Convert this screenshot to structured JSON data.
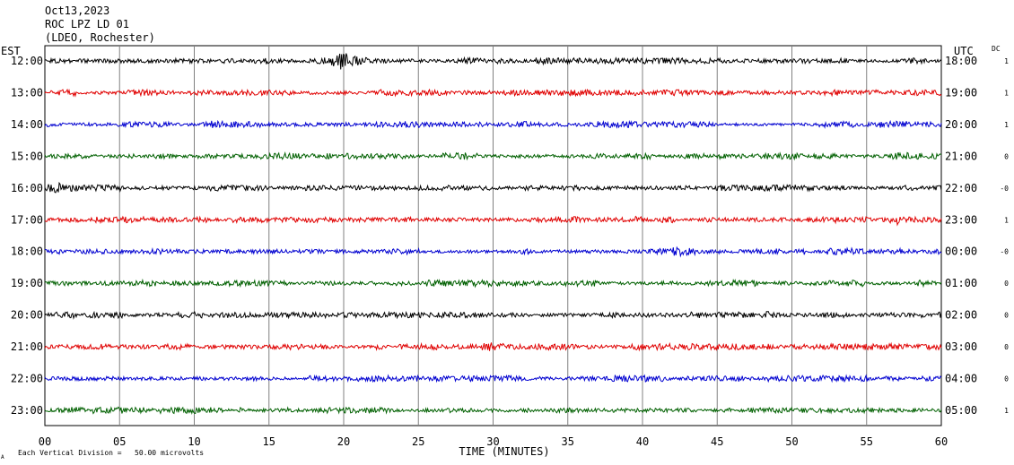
{
  "header": {
    "date": "Oct13,2023",
    "station": "ROC LPZ LD 01",
    "network": "(LDEO, Rochester)"
  },
  "left_axis_title": "EST",
  "right_axis_title": "UTC",
  "dc_title": "DC",
  "footer": {
    "scale_note": "Each Vertical Division =   50.00 microvolts",
    "corner_mark": "A"
  },
  "chart_data": {
    "type": "line",
    "xlabel": "TIME (MINUTES)",
    "xlim": [
      0,
      60
    ],
    "x_ticks": [
      "00",
      "05",
      "10",
      "15",
      "20",
      "25",
      "30",
      "35",
      "40",
      "45",
      "50",
      "55",
      "60"
    ],
    "trace_colors": [
      "#000000",
      "#e00000",
      "#0000d0",
      "#006000"
    ],
    "rows": [
      {
        "est": "12:00",
        "utc": "18:00",
        "dc": "1",
        "color": "#000000",
        "events": [
          [
            14.7,
            2.0
          ],
          [
            19.8,
            4.5
          ],
          [
            20.5,
            2.0
          ],
          [
            58.5,
            1.8
          ]
        ]
      },
      {
        "est": "13:00",
        "utc": "19:00",
        "dc": "1",
        "color": "#e00000",
        "events": [
          [
            53.0,
            1.6
          ],
          [
            56.5,
            1.5
          ]
        ]
      },
      {
        "est": "14:00",
        "utc": "20:00",
        "dc": "1",
        "color": "#0000d0",
        "events": [
          [
            11.0,
            1.6
          ],
          [
            31.8,
            1.6
          ]
        ]
      },
      {
        "est": "15:00",
        "utc": "21:00",
        "dc": "0",
        "color": "#006000",
        "events": [
          [
            28.0,
            1.6
          ],
          [
            57.5,
            1.9
          ]
        ]
      },
      {
        "est": "16:00",
        "utc": "22:00",
        "dc": "-0",
        "color": "#000000",
        "events": [
          [
            0.6,
            3.0
          ],
          [
            27.0,
            1.6
          ]
        ]
      },
      {
        "est": "17:00",
        "utc": "23:00",
        "dc": "1",
        "color": "#e00000",
        "events": [
          [
            39.5,
            1.6
          ],
          [
            57.0,
            2.5
          ]
        ]
      },
      {
        "est": "18:00",
        "utc": "00:00",
        "dc": "-0",
        "color": "#0000d0",
        "events": [
          [
            7.5,
            1.7
          ],
          [
            42.5,
            2.8
          ]
        ]
      },
      {
        "est": "19:00",
        "utc": "01:00",
        "dc": "0",
        "color": "#006000",
        "events": [
          [
            29.5,
            1.5
          ]
        ]
      },
      {
        "est": "20:00",
        "utc": "02:00",
        "dc": "0",
        "color": "#000000",
        "events": [
          [
            38.0,
            1.6
          ],
          [
            48.5,
            2.2
          ]
        ]
      },
      {
        "est": "21:00",
        "utc": "03:00",
        "dc": "0",
        "color": "#e00000",
        "events": [
          [
            16.5,
            1.5
          ],
          [
            29.8,
            2.4
          ],
          [
            34.5,
            1.7
          ]
        ]
      },
      {
        "est": "22:00",
        "utc": "04:00",
        "dc": "0",
        "color": "#0000d0",
        "events": []
      },
      {
        "est": "23:00",
        "utc": "05:00",
        "dc": "1",
        "color": "#006000",
        "events": [
          [
            45.5,
            1.6
          ]
        ]
      }
    ]
  }
}
